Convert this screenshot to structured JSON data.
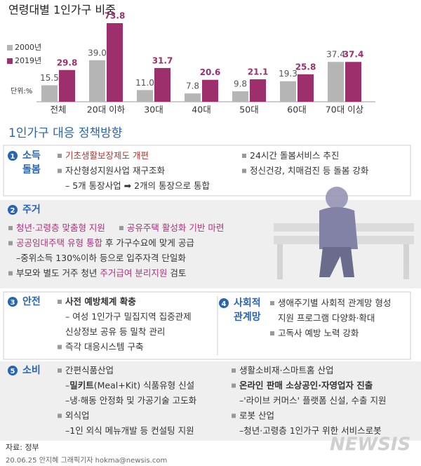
{
  "chart_data": {
    "type": "bar",
    "title": "연령대별 1인가구 비중",
    "unit": "단위:%",
    "categories": [
      "전체",
      "20대 이하",
      "30대",
      "40대",
      "50대",
      "60대",
      "70대 이상"
    ],
    "series": [
      {
        "name": "2000년",
        "color": "#b5b5b5",
        "values": [
          15.5,
          39.0,
          11.0,
          7.8,
          9.8,
          19.3,
          37.4
        ],
        "value_labels": [
          "15.5",
          "39.0",
          "11.0",
          "7.8",
          "9.8",
          "19.3",
          "37.4"
        ]
      },
      {
        "name": "2019년",
        "color": "#9c2f6c",
        "values": [
          29.8,
          73.8,
          31.7,
          20.6,
          21.1,
          25.8,
          37.4
        ]
      }
    ]
  },
  "policy": {
    "title": "1인가구 대응 정책방향",
    "sections": [
      {
        "num": "1",
        "heading": [
          "소득",
          "돌봄"
        ],
        "columns": [
          [
            {
              "items": [
                [
                  {
                    "t": "기초생활보장제도 개편",
                    "c": "#c0302b"
                  }
                ]
              ]
            },
            {
              "items": [
                [
                  {
                    "t": "자산형성지원사업 재구조화"
                  }
                ]
              ]
            },
            {
              "sub": [
                {
                  "t": "– 5개 통장사업 ➡ 2개의 통장으로 통합"
                }
              ]
            }
          ],
          [
            {
              "items": [
                [
                  {
                    "t": "24시간 돌봄서비스 추진"
                  }
                ]
              ]
            },
            {
              "items": [
                [
                  {
                    "t": "정신건강, 치매검진 등 돌봄 강화"
                  }
                ]
              ]
            }
          ]
        ]
      },
      {
        "num": "2",
        "heading": [
          "주거"
        ],
        "columns": [
          [
            {
              "items": [
                [
                  {
                    "t": "청년·고령층 맞춤형 지원",
                    "c": "#b0307a"
                  }
                ],
                [
                  {
                    "t": "공유주택 활성화 기반 마련",
                    "c": "#b0307a"
                  }
                ]
              ]
            },
            {
              "items": [
                [
                  {
                    "t": "공공임대주택 유형 통합",
                    "c": "#b0307a"
                  },
                  {
                    "t": " 후 가구수요에 맞게 공급"
                  }
                ]
              ]
            },
            {
              "sub": [
                {
                  "t": "–중위소득 130%이하 등으로 입주자격 단일화"
                }
              ]
            },
            {
              "items": [
                [
                  {
                    "t": "부모와 별도 거주 청년 "
                  },
                  {
                    "t": "주거급여 분리지원",
                    "c": "#b0307a"
                  },
                  {
                    "t": " 검토"
                  }
                ]
              ]
            }
          ]
        ]
      },
      {
        "num": "3",
        "heading": [
          "안전"
        ],
        "columns": [
          [
            {
              "items": [
                [
                  {
                    "t": "사전 예방체계 확충",
                    "w": "bold"
                  }
                ]
              ]
            },
            {
              "sub": [
                {
                  "t": "– 여성 1인가구 밀집지역 집중관제"
                }
              ]
            },
            {
              "sub": [
                {
                  "t": "  신상정보 공유 등 밀착 관리"
                }
              ]
            },
            {
              "items": [
                [
                  {
                    "t": "즉각 대응시스템 구축"
                  }
                ]
              ]
            }
          ]
        ]
      },
      {
        "num": "4",
        "heading": [
          "사회적",
          "관계망"
        ],
        "columns": [
          [
            {
              "items": [
                [
                  {
                    "t": "생애주기별 사회적 관계망 형성"
                  }
                ]
              ]
            },
            {
              "sub": [
                {
                  "t": "지원 프로그램 다양화·확대"
                }
              ]
            },
            {
              "items": [
                [
                  {
                    "t": "고독사 예방 노력 강화"
                  }
                ]
              ]
            }
          ]
        ]
      },
      {
        "num": "5",
        "heading": [
          "소비"
        ],
        "columns": [
          [
            {
              "items": [
                [
                  {
                    "t": "간편식품산업"
                  }
                ]
              ]
            },
            {
              "sub": [
                {
                  "t": "–"
                },
                {
                  "t": "밀키트",
                  "w": "bold"
                },
                {
                  "t": "(Meal+Kit) 식품유형 신설"
                }
              ]
            },
            {
              "sub": [
                {
                  "t": "–냉·해동 안정화 및 가공기술 고도화"
                }
              ]
            },
            {
              "items": [
                [
                  {
                    "t": "외식업"
                  }
                ]
              ]
            },
            {
              "sub": [
                {
                  "t": "–1인 외식 메뉴개발 등 컨설팅 지원"
                }
              ]
            }
          ],
          [
            {
              "items": [
                [
                  {
                    "t": "생활소비재·스마트홈 산업"
                  }
                ]
              ]
            },
            {
              "items": [
                [
                  {
                    "t": "온라인 판매 소상공인·자영업자 진출",
                    "w": "bold"
                  }
                ]
              ]
            },
            {
              "sub": [
                {
                  "t": "–'라이브 커머스' 플랫폼 신설, 수출 지원"
                }
              ]
            },
            {
              "items": [
                [
                  {
                    "t": "로봇 산업"
                  }
                ]
              ]
            },
            {
              "sub": [
                {
                  "t": "–청년·고령층 1인가구 위한 서비스로봇"
                }
              ]
            }
          ]
        ]
      }
    ]
  },
  "footer": {
    "source": "자료: 정부",
    "credit": "20.06.25 안지혜 그래픽기자  hokma@newsis.com",
    "logo": "NEWSIS"
  }
}
